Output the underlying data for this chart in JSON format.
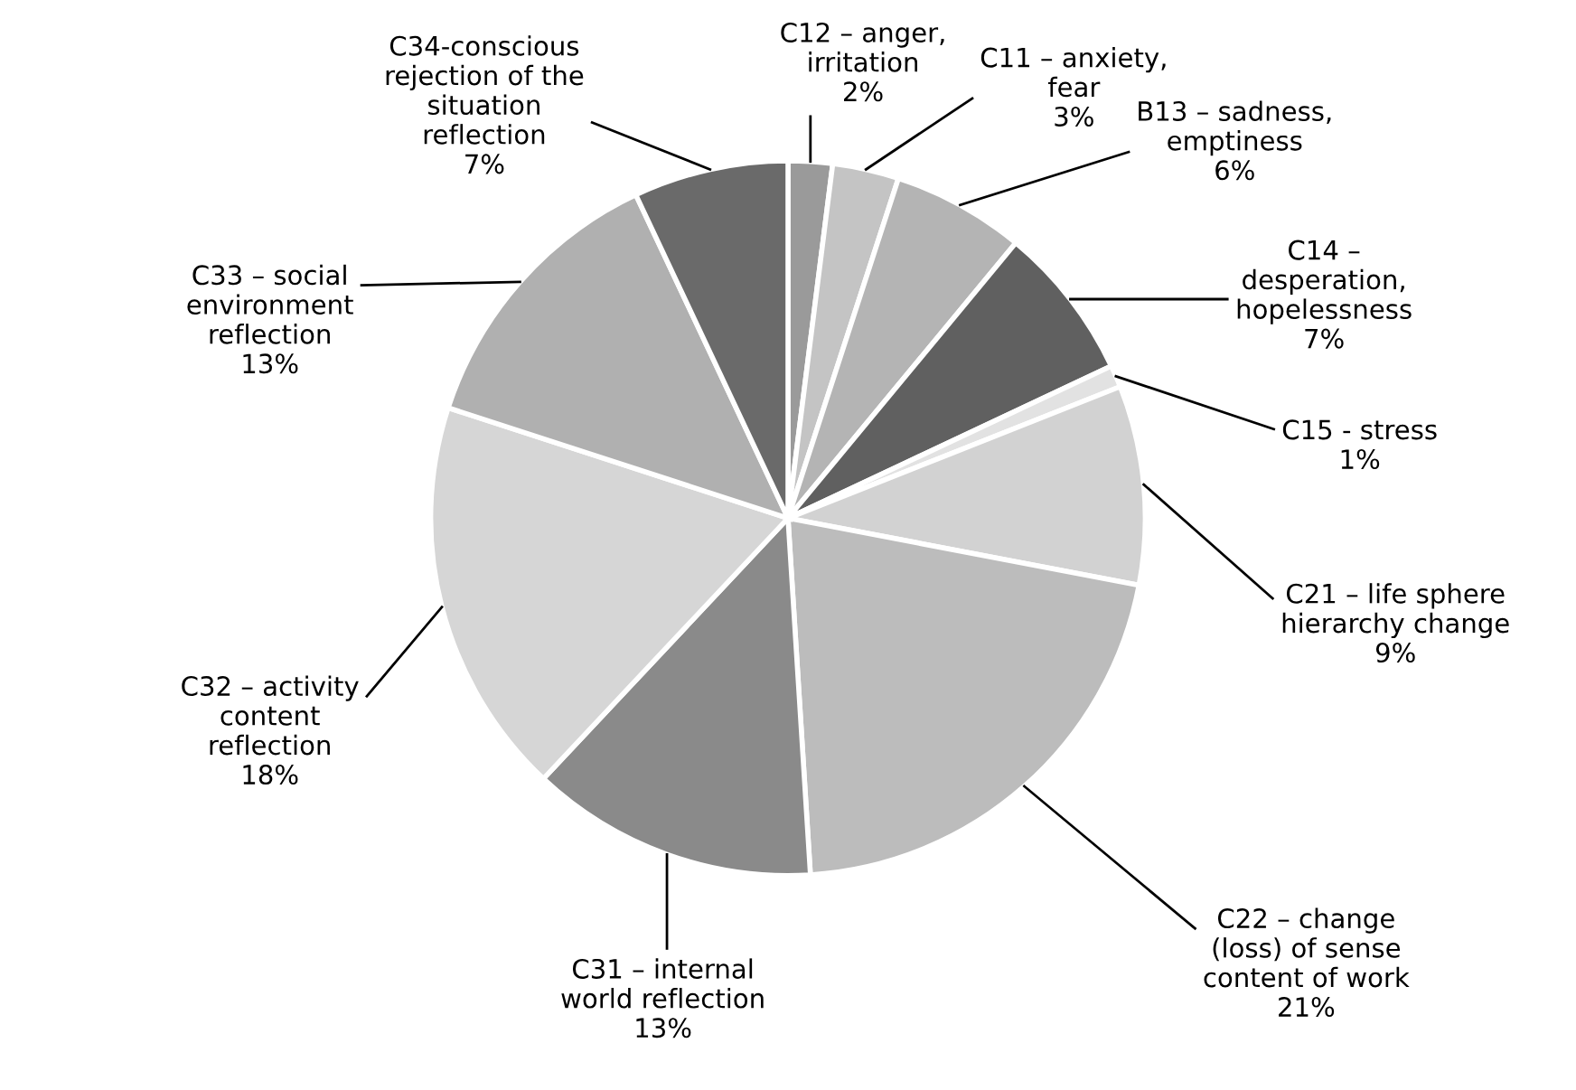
{
  "chart_data": {
    "type": "pie",
    "categories": [
      "C12 – anger,\nirritation",
      "C11 – anxiety,\nfear",
      "B13 – sadness,\nemptiness",
      "C14 –\ndesperation,\nhopelessness",
      "C15 - stress",
      "C21 – life sphere\nhierarchy change",
      "C22 – change\n(loss) of sense\ncontent of work",
      "C31 – internal\nworld reflection",
      "C32 – activity\ncontent\nreflection",
      "C33 – social\nenvironment\nreflection",
      "C34-conscious\nrejection of the\nsituation\nreflection"
    ],
    "values": [
      2,
      3,
      6,
      7,
      1,
      9,
      21,
      13,
      18,
      13,
      7
    ],
    "colors": [
      "#9a9a9a",
      "#c4c4c4",
      "#b4b4b4",
      "#606060",
      "#e2e2e2",
      "#d2d2d2",
      "#bcbcbc",
      "#8a8a8a",
      "#d6d6d6",
      "#b0b0b0",
      "#6a6a6a"
    ],
    "value_labels": [
      "2%",
      "3%",
      "6%",
      "7%",
      "1%",
      "9%",
      "21%",
      "13%",
      "18%",
      "13%",
      "7%"
    ],
    "legend": false
  }
}
